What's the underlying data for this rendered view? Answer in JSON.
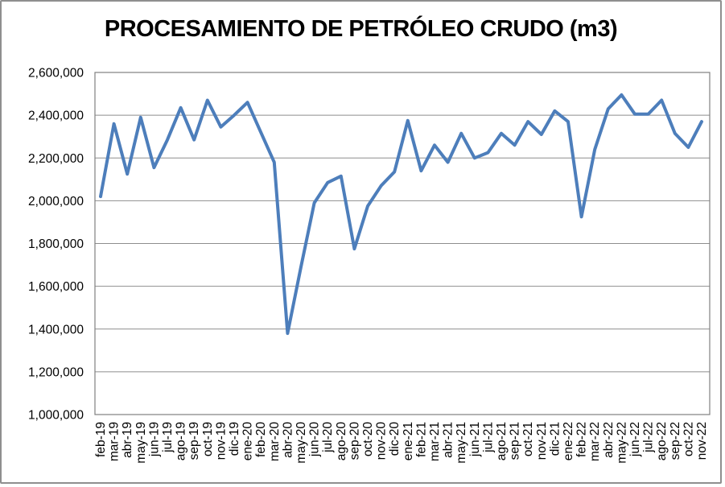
{
  "window": {
    "background": "#ffffff",
    "frame_border_color": "#8f8f8f"
  },
  "chart_data": {
    "type": "line",
    "title": "PROCESAMIENTO DE PETRÓLEO CRUDO (m3)",
    "categories": [
      "feb-19",
      "mar-19",
      "abr-19",
      "may-19",
      "jun-19",
      "jul-19",
      "ago-19",
      "sep-19",
      "oct-19",
      "nov-19",
      "dic-19",
      "ene-20",
      "feb-20",
      "mar-20",
      "abr-20",
      "may-20",
      "jun-20",
      "jul-20",
      "ago-20",
      "sep-20",
      "oct-20",
      "nov-20",
      "dic-20",
      "ene-21",
      "feb-21",
      "mar-21",
      "abr-21",
      "may-21",
      "jun-21",
      "jul-21",
      "ago-21",
      "sep-21",
      "oct-21",
      "nov-21",
      "dic-21",
      "ene-22",
      "feb-22",
      "mar-22",
      "abr-22",
      "may-22",
      "jun-22",
      "jul-22",
      "ago-22",
      "sep-22",
      "oct-22",
      "nov-22"
    ],
    "values": [
      2020000,
      2360000,
      2125000,
      2390000,
      2155000,
      2285000,
      2435000,
      2285000,
      2470000,
      2345000,
      2400000,
      2460000,
      2320000,
      2180000,
      1380000,
      1690000,
      1990000,
      2085000,
      2115000,
      1775000,
      1975000,
      2070000,
      2135000,
      2375000,
      2140000,
      2260000,
      2180000,
      2315000,
      2200000,
      2225000,
      2315000,
      2260000,
      2370000,
      2310000,
      2420000,
      2370000,
      1925000,
      2240000,
      2430000,
      2495000,
      2405000,
      2405000,
      2470000,
      2315000,
      2250000,
      2370000
    ],
    "ylim": [
      1000000,
      2600000
    ],
    "ytick_step": 200000,
    "ytick_labels": [
      "1,000,000",
      "1,200,000",
      "1,400,000",
      "1,600,000",
      "1,800,000",
      "2,000,000",
      "2,200,000",
      "2,400,000",
      "2,600,000"
    ],
    "grid": "horizontal",
    "legend": "none",
    "line_color": "#4D7EBB",
    "line_width": 4,
    "gridline_color": "#8e8e8e",
    "plot_border_color": "#808080",
    "axis_text_color": "#000000",
    "title_color": "#000000"
  }
}
